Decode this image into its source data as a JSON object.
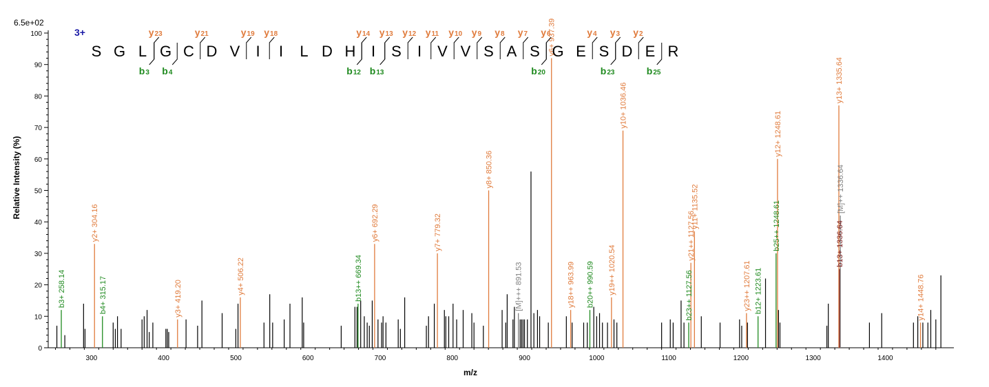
{
  "chart_data": {
    "type": "bar",
    "title": "",
    "scale_label": "6.5e+02",
    "xlabel": "m/z",
    "ylabel": "Relative   Intensity (%)",
    "xlim": [
      240,
      1495
    ],
    "ylim": [
      0,
      100
    ],
    "xticks": [
      300,
      400,
      500,
      600,
      700,
      800,
      900,
      1000,
      1100,
      1200,
      1300,
      1400
    ],
    "yticks": [
      0,
      10,
      20,
      30,
      40,
      50,
      60,
      70,
      80,
      90,
      100
    ],
    "colors": {
      "y": "#e07b3c",
      "b": "#1f8a1f",
      "m": "#7f7f7f",
      "other": "#000000",
      "precursor": "#7a1a1a"
    },
    "charge": "3+",
    "sequence": [
      "S",
      "G",
      "L",
      "G",
      "C",
      "D",
      "V",
      "I",
      "I",
      "L",
      "D",
      "H",
      "I",
      "S",
      "I",
      "V",
      "V",
      "S",
      "A",
      "S",
      "G",
      "E",
      "S",
      "D",
      "E",
      "R"
    ],
    "y_ions": [
      {
        "label": "y",
        "num": "23",
        "after": 3
      },
      {
        "label": "y",
        "num": "21",
        "after": 5
      },
      {
        "label": "y",
        "num": "19",
        "after": 7
      },
      {
        "label": "y",
        "num": "18",
        "after": 8
      },
      {
        "label": "y",
        "num": "14",
        "after": 12
      },
      {
        "label": "y",
        "num": "13",
        "after": 13
      },
      {
        "label": "y",
        "num": "12",
        "after": 14
      },
      {
        "label": "y",
        "num": "11",
        "after": 15
      },
      {
        "label": "y",
        "num": "10",
        "after": 16
      },
      {
        "label": "y",
        "num": "9",
        "after": 17
      },
      {
        "label": "y",
        "num": "8",
        "after": 18
      },
      {
        "label": "y",
        "num": "7",
        "after": 19
      },
      {
        "label": "y",
        "num": "6",
        "after": 20
      },
      {
        "label": "y",
        "num": "4",
        "after": 22
      },
      {
        "label": "y",
        "num": "3",
        "after": 23
      },
      {
        "label": "y",
        "num": "2",
        "after": 24
      }
    ],
    "b_ions": [
      {
        "label": "b",
        "num": "3",
        "after": 3
      },
      {
        "label": "b",
        "num": "4",
        "after": 4
      },
      {
        "label": "b",
        "num": "12",
        "after": 12
      },
      {
        "label": "b",
        "num": "13",
        "after": 13
      },
      {
        "label": "b",
        "num": "20",
        "after": 20
      },
      {
        "label": "b",
        "num": "23",
        "after": 23
      },
      {
        "label": "b",
        "num": "25",
        "after": 25
      }
    ],
    "labeled_peaks": [
      {
        "x": 258.14,
        "y": 12,
        "label": "b3+ 258.14",
        "type": "b"
      },
      {
        "x": 304.16,
        "y": 33,
        "label": "y2+ 304.16",
        "type": "y"
      },
      {
        "x": 315.17,
        "y": 10,
        "label": "b4+ 315.17",
        "type": "b"
      },
      {
        "x": 419.2,
        "y": 9,
        "label": "y3+ 419.20",
        "type": "y"
      },
      {
        "x": 506.22,
        "y": 16,
        "label": "y4+ 506.22",
        "type": "y"
      },
      {
        "x": 669.34,
        "y": 14,
        "label": "b13++ 669.34",
        "type": "b"
      },
      {
        "x": 692.29,
        "y": 33,
        "label": "y6+ 692.29",
        "type": "y"
      },
      {
        "x": 779.32,
        "y": 30,
        "label": "y7+ 779.32",
        "type": "y"
      },
      {
        "x": 850.36,
        "y": 50,
        "label": "y8+ 850.36",
        "type": "y"
      },
      {
        "x": 891.53,
        "y": 11,
        "label": "[M]+++ 891.53",
        "type": "m"
      },
      {
        "x": 937.39,
        "y": 92,
        "label": "y6+ 937.39",
        "type": "y"
      },
      {
        "x": 963.99,
        "y": 12,
        "label": "y18++ 963.99",
        "type": "y"
      },
      {
        "x": 990.59,
        "y": 12,
        "label": "b20++ 990.59",
        "type": "b"
      },
      {
        "x": 1020.54,
        "y": 16,
        "label": "y19++ 1020.54",
        "type": "y"
      },
      {
        "x": 1036.46,
        "y": 69,
        "label": "y10+ 1036.46",
        "type": "y"
      },
      {
        "x": 1127.56,
        "y": 8,
        "label": "b23++ 1127.56",
        "type": "b"
      },
      {
        "x": 1130.56,
        "y": 27,
        "label": "y21++ 1127.56",
        "type": "y"
      },
      {
        "x": 1135.52,
        "y": 37,
        "label": "y11+ 1135.52",
        "type": "y"
      },
      {
        "x": 1207.61,
        "y": 11,
        "label": "y23++ 1207.61",
        "type": "y"
      },
      {
        "x": 1223.61,
        "y": 10,
        "label": "b12+ 1223.61",
        "type": "b"
      },
      {
        "x": 1248.61,
        "y": 30,
        "label": "b25++ 1248.61",
        "type": "b"
      },
      {
        "x": 1250.61,
        "y": 60,
        "label": "y12+ 1248.61",
        "type": "y"
      },
      {
        "x": 1335.64,
        "y": 77,
        "label": "y13+ 1335.64",
        "type": "y"
      },
      {
        "x": 1336.64,
        "y": 25,
        "label": "b13+ 1336.64",
        "type": "precursor"
      },
      {
        "x": 1337.64,
        "y": 42,
        "label": "[M]++ 1336.64",
        "type": "m"
      },
      {
        "x": 1448.76,
        "y": 8,
        "label": "y14+ 1448.76",
        "type": "y"
      }
    ],
    "other_peaks": [
      [
        252,
        7
      ],
      [
        263,
        4
      ],
      [
        289,
        14
      ],
      [
        291,
        6
      ],
      [
        330,
        8
      ],
      [
        333,
        6
      ],
      [
        336,
        10
      ],
      [
        341,
        6
      ],
      [
        370,
        9
      ],
      [
        373,
        10
      ],
      [
        377,
        12
      ],
      [
        380,
        5
      ],
      [
        385,
        8
      ],
      [
        403,
        6
      ],
      [
        405,
        6
      ],
      [
        407,
        5
      ],
      [
        431,
        9
      ],
      [
        447,
        7
      ],
      [
        453,
        15
      ],
      [
        481,
        11
      ],
      [
        500,
        6
      ],
      [
        503,
        14
      ],
      [
        539,
        8
      ],
      [
        547,
        17
      ],
      [
        551,
        8
      ],
      [
        567,
        9
      ],
      [
        575,
        14
      ],
      [
        592,
        16
      ],
      [
        594,
        8
      ],
      [
        646,
        7
      ],
      [
        665,
        13
      ],
      [
        668,
        13
      ],
      [
        673,
        15
      ],
      [
        678,
        10
      ],
      [
        682,
        8
      ],
      [
        685,
        7
      ],
      [
        689,
        15
      ],
      [
        697,
        9
      ],
      [
        702,
        8
      ],
      [
        704,
        10
      ],
      [
        708,
        8
      ],
      [
        725,
        9
      ],
      [
        728,
        6
      ],
      [
        734,
        16
      ],
      [
        764,
        7
      ],
      [
        767,
        10
      ],
      [
        775,
        14
      ],
      [
        789,
        12
      ],
      [
        791,
        10
      ],
      [
        795,
        10
      ],
      [
        801,
        14
      ],
      [
        806,
        9
      ],
      [
        815,
        12
      ],
      [
        827,
        11
      ],
      [
        830,
        8
      ],
      [
        843,
        7
      ],
      [
        869,
        12
      ],
      [
        874,
        8
      ],
      [
        876,
        17
      ],
      [
        884,
        9
      ],
      [
        886,
        13
      ],
      [
        894,
        9
      ],
      [
        896,
        9
      ],
      [
        898,
        9
      ],
      [
        900,
        9
      ],
      [
        904,
        9
      ],
      [
        909,
        56
      ],
      [
        913,
        11
      ],
      [
        918,
        12
      ],
      [
        921,
        10
      ],
      [
        933,
        8
      ],
      [
        958,
        10
      ],
      [
        966,
        8
      ],
      [
        982,
        8
      ],
      [
        987,
        8
      ],
      [
        996,
        13
      ],
      [
        1000,
        10
      ],
      [
        1004,
        11
      ],
      [
        1008,
        8
      ],
      [
        1015,
        8
      ],
      [
        1024,
        9
      ],
      [
        1028,
        8
      ],
      [
        1090,
        8
      ],
      [
        1102,
        9
      ],
      [
        1106,
        8
      ],
      [
        1117,
        15
      ],
      [
        1121,
        8
      ],
      [
        1145,
        10
      ],
      [
        1171,
        8
      ],
      [
        1198,
        9
      ],
      [
        1201,
        7
      ],
      [
        1209,
        8
      ],
      [
        1234,
        22
      ],
      [
        1252,
        12
      ],
      [
        1254,
        8
      ],
      [
        1319,
        7
      ],
      [
        1321,
        14
      ],
      [
        1378,
        8
      ],
      [
        1395,
        11
      ],
      [
        1439,
        8
      ],
      [
        1445,
        10
      ],
      [
        1452,
        8
      ],
      [
        1459,
        8
      ],
      [
        1463,
        12
      ],
      [
        1470,
        9
      ],
      [
        1477,
        23
      ]
    ]
  }
}
